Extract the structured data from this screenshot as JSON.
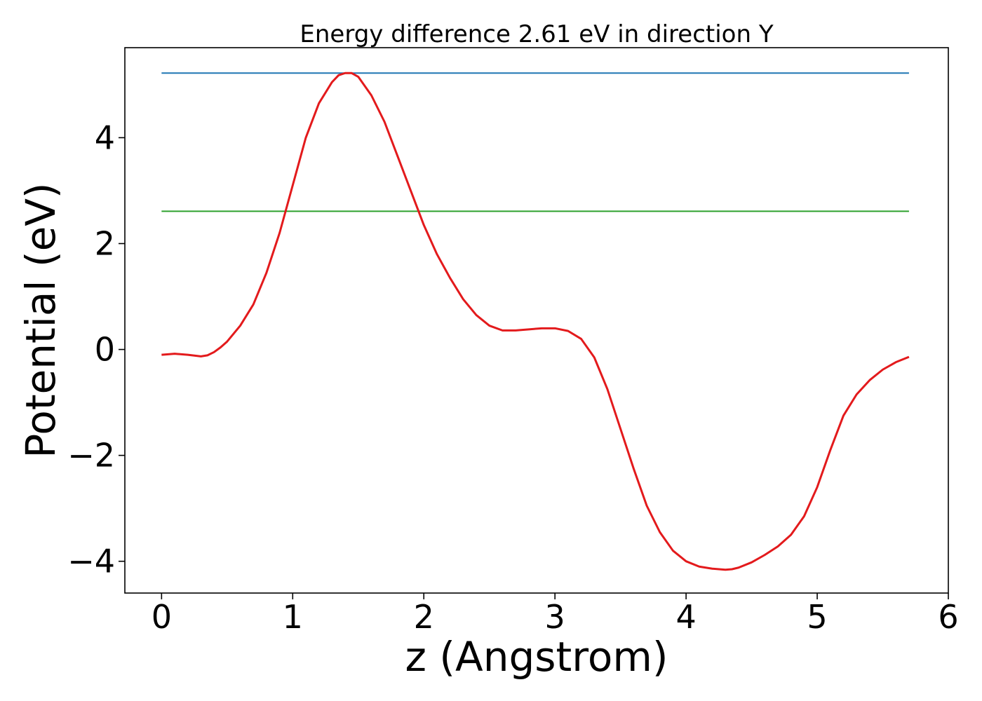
{
  "chart_data": {
    "type": "line",
    "title": "Energy difference 2.61 eV in direction Y",
    "xlabel": "z (Angstrom)",
    "ylabel": "Potential (eV)",
    "xlim": [
      -0.28,
      6.0
    ],
    "ylim": [
      -4.6,
      5.7
    ],
    "xticks": [
      0,
      1,
      2,
      3,
      4,
      5,
      6
    ],
    "xtick_labels": [
      "0",
      "1",
      "2",
      "3",
      "4",
      "5",
      "6"
    ],
    "yticks": [
      -4,
      -2,
      0,
      2,
      4
    ],
    "ytick_labels": [
      "−4",
      "−2",
      "0",
      "2",
      "4"
    ],
    "grid": false,
    "colors": {
      "potential": "#e31a1c",
      "max_line": "#1f77b4",
      "diff_line": "#2ca02c"
    },
    "series": [
      {
        "x": [
          0.0,
          0.1,
          0.2,
          0.3,
          0.35,
          0.4,
          0.45,
          0.5,
          0.6,
          0.7,
          0.8,
          0.9,
          1.0,
          1.1,
          1.2,
          1.3,
          1.35,
          1.4,
          1.45,
          1.5,
          1.6,
          1.7,
          1.8,
          1.9,
          2.0,
          2.1,
          2.2,
          2.3,
          2.4,
          2.5,
          2.6,
          2.7,
          2.8,
          2.9,
          3.0,
          3.1,
          3.2,
          3.3,
          3.4,
          3.5,
          3.6,
          3.7,
          3.8,
          3.9,
          4.0,
          4.1,
          4.2,
          4.3,
          4.35,
          4.4,
          4.5,
          4.6,
          4.7,
          4.8,
          4.9,
          5.0,
          5.1,
          5.2,
          5.3,
          5.4,
          5.5,
          5.6,
          5.7
        ],
        "y": [
          -0.1,
          -0.08,
          -0.1,
          -0.13,
          -0.11,
          -0.05,
          0.04,
          0.15,
          0.45,
          0.85,
          1.45,
          2.2,
          3.1,
          4.0,
          4.65,
          5.05,
          5.18,
          5.22,
          5.22,
          5.15,
          4.8,
          4.3,
          3.65,
          3.0,
          2.35,
          1.8,
          1.35,
          0.95,
          0.65,
          0.45,
          0.36,
          0.36,
          0.38,
          0.4,
          0.4,
          0.35,
          0.2,
          -0.15,
          -0.75,
          -1.5,
          -2.25,
          -2.95,
          -3.45,
          -3.8,
          -4.0,
          -4.1,
          -4.14,
          -4.16,
          -4.15,
          -4.12,
          -4.02,
          -3.88,
          -3.72,
          -3.5,
          -3.15,
          -2.6,
          -1.9,
          -1.25,
          -0.85,
          -0.58,
          -0.38,
          -0.24,
          -0.14
        ]
      },
      {
        "x": [
          0.0,
          5.7
        ],
        "y": [
          5.22,
          5.22
        ]
      },
      {
        "x": [
          0.0,
          5.7
        ],
        "y": [
          2.61,
          2.61
        ]
      }
    ]
  }
}
